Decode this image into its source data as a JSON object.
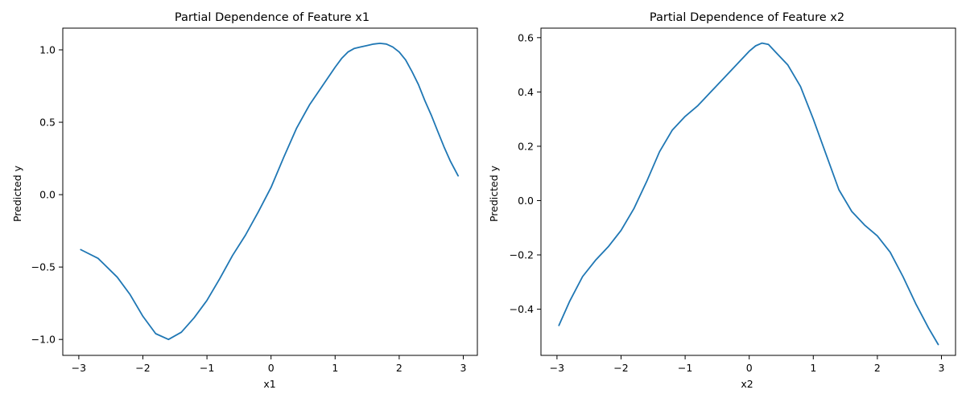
{
  "colors": {
    "line": "#1f77b4",
    "axes": "#000000",
    "background": "#ffffff"
  },
  "chart_data": [
    {
      "type": "line",
      "title": "Partial Dependence of Feature x1",
      "xlabel": "x1",
      "ylabel": "Predicted y",
      "grid": false,
      "xlim": [
        -3.25,
        3.22
      ],
      "ylim": [
        -1.11,
        1.15
      ],
      "xticks": [
        -3,
        -2,
        -1,
        0,
        1,
        2,
        3
      ],
      "xtick_labels": [
        "−3",
        "−2",
        "−1",
        "0",
        "1",
        "2",
        "3"
      ],
      "yticks": [
        -1.0,
        -0.5,
        0.0,
        0.5,
        1.0
      ],
      "ytick_labels": [
        "−1.0",
        "−0.5",
        "0.0",
        "0.5",
        "1.0"
      ],
      "series": [
        {
          "x": [
            -2.97,
            -2.7,
            -2.4,
            -2.2,
            -2.0,
            -1.8,
            -1.6,
            -1.4,
            -1.2,
            -1.0,
            -0.8,
            -0.6,
            -0.4,
            -0.2,
            0.0,
            0.2,
            0.4,
            0.6,
            0.8,
            1.0,
            1.1,
            1.2,
            1.3,
            1.4,
            1.5,
            1.6,
            1.7,
            1.8,
            1.9,
            2.0,
            2.1,
            2.2,
            2.3,
            2.4,
            2.5,
            2.6,
            2.7,
            2.8,
            2.92
          ],
          "y": [
            -0.38,
            -0.44,
            -0.57,
            -0.69,
            -0.84,
            -0.96,
            -1.0,
            -0.95,
            -0.85,
            -0.73,
            -0.58,
            -0.42,
            -0.28,
            -0.12,
            0.05,
            0.26,
            0.46,
            0.62,
            0.75,
            0.88,
            0.94,
            0.985,
            1.01,
            1.02,
            1.03,
            1.04,
            1.045,
            1.04,
            1.02,
            0.985,
            0.93,
            0.85,
            0.76,
            0.65,
            0.55,
            0.44,
            0.33,
            0.23,
            0.13
          ]
        }
      ]
    },
    {
      "type": "line",
      "title": "Partial Dependence of Feature x2",
      "xlabel": "x2",
      "ylabel": "Predicted y",
      "grid": false,
      "xlim": [
        -3.25,
        3.22
      ],
      "ylim": [
        -0.57,
        0.635
      ],
      "xticks": [
        -3,
        -2,
        -1,
        0,
        1,
        2,
        3
      ],
      "xtick_labels": [
        "−3",
        "−2",
        "−1",
        "0",
        "1",
        "2",
        "3"
      ],
      "yticks": [
        -0.4,
        -0.2,
        0.0,
        0.2,
        0.4,
        0.6
      ],
      "ytick_labels": [
        "−0.4",
        "−0.2",
        "0.0",
        "0.2",
        "0.4",
        "0.6"
      ],
      "series": [
        {
          "x": [
            -2.97,
            -2.8,
            -2.6,
            -2.4,
            -2.2,
            -2.0,
            -1.8,
            -1.6,
            -1.4,
            -1.2,
            -1.0,
            -0.8,
            -0.6,
            -0.4,
            -0.2,
            0.0,
            0.1,
            0.2,
            0.3,
            0.4,
            0.6,
            0.8,
            1.0,
            1.2,
            1.4,
            1.6,
            1.8,
            2.0,
            2.2,
            2.4,
            2.6,
            2.8,
            2.95
          ],
          "y": [
            -0.46,
            -0.37,
            -0.28,
            -0.22,
            -0.17,
            -0.11,
            -0.03,
            0.07,
            0.18,
            0.26,
            0.31,
            0.35,
            0.4,
            0.45,
            0.5,
            0.55,
            0.57,
            0.58,
            0.575,
            0.55,
            0.5,
            0.42,
            0.3,
            0.17,
            0.04,
            -0.04,
            -0.09,
            -0.13,
            -0.19,
            -0.28,
            -0.38,
            -0.47,
            -0.53
          ]
        }
      ]
    }
  ]
}
